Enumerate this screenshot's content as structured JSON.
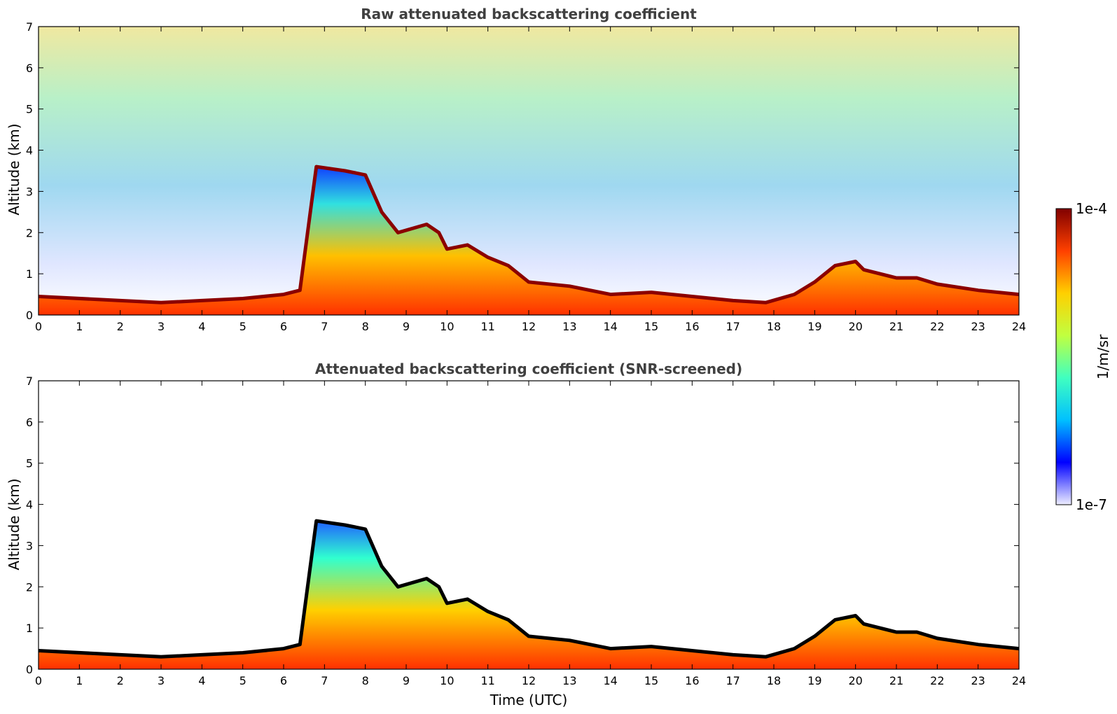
{
  "chart_data": [
    {
      "type": "heatmap",
      "title": "Raw attenuated backscattering coefficient",
      "xlabel": "",
      "ylabel": "Altitude (km)",
      "xlim": [
        0,
        24
      ],
      "ylim": [
        0,
        7
      ],
      "x_ticks": [
        "0",
        "1",
        "2",
        "3",
        "4",
        "5",
        "6",
        "7",
        "8",
        "9",
        "10",
        "11",
        "12",
        "13",
        "14",
        "15",
        "16",
        "17",
        "18",
        "19",
        "20",
        "21",
        "22",
        "23",
        "24"
      ],
      "y_ticks": [
        "0",
        "1",
        "2",
        "3",
        "4",
        "5",
        "6",
        "7"
      ],
      "screened": false,
      "layer_top_km": {
        "time": [
          0,
          2,
          3,
          4,
          5,
          6,
          6.4,
          6.8,
          7.5,
          8,
          8.4,
          8.8,
          9.5,
          9.8,
          10,
          10.5,
          11,
          11.5,
          12,
          13,
          14,
          15,
          16,
          17,
          17.8,
          18.5,
          19,
          19.5,
          20,
          20.2,
          21,
          21.5,
          22,
          23,
          24
        ],
        "altitude": [
          0.45,
          0.35,
          0.3,
          0.35,
          0.4,
          0.5,
          0.6,
          3.6,
          3.5,
          3.4,
          2.5,
          2.0,
          2.2,
          2.0,
          1.6,
          1.7,
          1.4,
          1.2,
          0.8,
          0.7,
          0.5,
          0.55,
          0.45,
          0.35,
          0.3,
          0.5,
          0.8,
          1.2,
          1.3,
          1.1,
          0.9,
          0.9,
          0.75,
          0.6,
          0.5
        ]
      }
    },
    {
      "type": "heatmap",
      "title": "Attenuated backscattering coefficient (SNR-screened)",
      "xlabel": "Time (UTC)",
      "ylabel": "Altitude (km)",
      "xlim": [
        0,
        24
      ],
      "ylim": [
        0,
        7
      ],
      "x_ticks": [
        "0",
        "1",
        "2",
        "3",
        "4",
        "5",
        "6",
        "7",
        "8",
        "9",
        "10",
        "11",
        "12",
        "13",
        "14",
        "15",
        "16",
        "17",
        "18",
        "19",
        "20",
        "21",
        "22",
        "23",
        "24"
      ],
      "y_ticks": [
        "0",
        "1",
        "2",
        "3",
        "4",
        "5",
        "6",
        "7"
      ],
      "screened": true,
      "layer_top_km": {
        "time": [
          0,
          2,
          3,
          4,
          5,
          6,
          6.4,
          6.8,
          7.5,
          8,
          8.4,
          8.8,
          9.5,
          9.8,
          10,
          10.5,
          11,
          11.5,
          12,
          13,
          14,
          15,
          16,
          17,
          17.8,
          18.5,
          19,
          19.5,
          20,
          20.2,
          21,
          21.5,
          22,
          23,
          24
        ],
        "altitude": [
          0.45,
          0.35,
          0.3,
          0.35,
          0.4,
          0.5,
          0.6,
          3.6,
          3.5,
          3.4,
          2.5,
          2.0,
          2.2,
          2.0,
          1.6,
          1.7,
          1.4,
          1.2,
          0.8,
          0.7,
          0.5,
          0.55,
          0.45,
          0.35,
          0.3,
          0.5,
          0.8,
          1.2,
          1.3,
          1.1,
          0.9,
          0.9,
          0.75,
          0.6,
          0.5
        ]
      }
    }
  ],
  "colorbar": {
    "min_label": "1e-7",
    "max_label": "1e-4",
    "label": "1/m/sr",
    "colormap": "jet",
    "colors": [
      "#eeeeff",
      "#0000ff",
      "#00c0ff",
      "#40ffc0",
      "#c0ff40",
      "#ffd000",
      "#ff4000",
      "#800000"
    ]
  }
}
